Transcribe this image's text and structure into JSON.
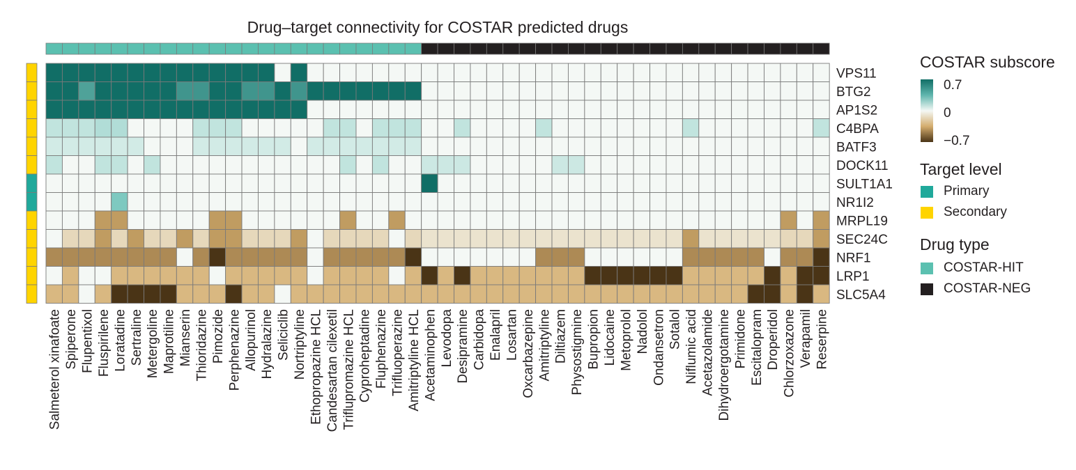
{
  "colors": {
    "hit": "#5bc0b0",
    "neg": "#231f20",
    "primary": "#20a99b",
    "secondary": "#ffd400",
    "grid": "#7a7a7a",
    "text": "#231f20"
  },
  "legend": {
    "score_title": "COSTAR subscore",
    "score_ticks": [
      "0.7",
      "0",
      "−0.7"
    ],
    "target_title": "Target level",
    "target_items": [
      "Primary",
      "Secondary"
    ],
    "drug_title": "Drug type",
    "drug_items": [
      "COSTAR-HIT",
      "COSTAR-NEG"
    ]
  },
  "chart_data": {
    "type": "heatmap",
    "title": "Drug–target connectivity for COSTAR predicted drugs",
    "value_range": [
      -0.7,
      0.7
    ],
    "drugs": [
      "Salmeterol xinafoate",
      "Spiperone",
      "Flupentixol",
      "Fluspirilene",
      "Loratadine",
      "Sertraline",
      "Metergoline",
      "Maprotiline",
      "Mianserin",
      "Thioridazine",
      "Pimozide",
      "Perphenazine",
      "Allopurinol",
      "Hydralazine",
      "Seliciclib",
      "Nortriptyline",
      "Ethopropazine HCL",
      "Candesartan cilexetil",
      "Triflupromazine HCL",
      "Cyproheptadine",
      "Fluphenazine",
      "Trifluoperazine",
      "Amitriptyline HCL",
      "Acetaminophen",
      "Levodopa",
      "Desipramine",
      "Carbidopa",
      "Enalapril",
      "Losartan",
      "Oxcarbazepine",
      "Amitriptyline",
      "Diltiazem",
      "Physostigmine",
      "Bupropion",
      "Lidocaine",
      "Metoprolol",
      "Nadolol",
      "Ondansetron",
      "Sotalol",
      "Niflumic acid",
      "Acetazolamide",
      "Dihydroergotamine",
      "Primidone",
      "Escitalopram",
      "Droperidol",
      "Chlorzoxazone",
      "Verapamil",
      "Reserpine"
    ],
    "drug_types": [
      "HIT",
      "HIT",
      "HIT",
      "HIT",
      "HIT",
      "HIT",
      "HIT",
      "HIT",
      "HIT",
      "HIT",
      "HIT",
      "HIT",
      "HIT",
      "HIT",
      "HIT",
      "HIT",
      "HIT",
      "HIT",
      "HIT",
      "HIT",
      "HIT",
      "HIT",
      "HIT",
      "NEG",
      "NEG",
      "NEG",
      "NEG",
      "NEG",
      "NEG",
      "NEG",
      "NEG",
      "NEG",
      "NEG",
      "NEG",
      "NEG",
      "NEG",
      "NEG",
      "NEG",
      "NEG",
      "NEG",
      "NEG",
      "NEG",
      "NEG",
      "NEG",
      "NEG",
      "NEG",
      "NEG",
      "NEG"
    ],
    "targets": [
      "VPS11",
      "BTG2",
      "AP1S2",
      "C4BPA",
      "BATF3",
      "DOCK11",
      "SULT1A1",
      "NR1I2",
      "MRPL19",
      "SEC24C",
      "NRF1",
      "LRP1",
      "SLC5A4"
    ],
    "target_levels": [
      "Secondary",
      "Secondary",
      "Secondary",
      "Secondary",
      "Secondary",
      "Secondary",
      "Primary",
      "Primary",
      "Secondary",
      "Secondary",
      "Secondary",
      "Secondary",
      "Secondary"
    ],
    "values": [
      [
        0.7,
        0.7,
        0.7,
        0.7,
        0.7,
        0.7,
        0.7,
        0.7,
        0.7,
        0.7,
        0.7,
        0.7,
        0.7,
        0.7,
        0,
        0.7,
        0,
        0,
        0,
        0,
        0,
        0,
        0,
        0,
        0,
        0,
        0,
        0,
        0,
        0,
        0,
        0,
        0,
        0,
        0,
        0,
        0,
        0,
        0,
        0,
        0,
        0,
        0,
        0,
        0,
        0,
        0,
        0
      ],
      [
        0.7,
        0.7,
        0.5,
        0.7,
        0.7,
        0.7,
        0.7,
        0.7,
        0.55,
        0.55,
        0.7,
        0.7,
        0.55,
        0.55,
        0.7,
        0.55,
        0.7,
        0.7,
        0.7,
        0.7,
        0.7,
        0.7,
        0.7,
        0,
        0,
        0,
        0,
        0,
        0,
        0,
        0,
        0,
        0,
        0,
        0,
        0,
        0,
        0,
        0,
        0,
        0,
        0,
        0,
        0,
        0,
        0,
        0,
        0
      ],
      [
        0.7,
        0.7,
        0.7,
        0.7,
        0.7,
        0.7,
        0.7,
        0.7,
        0.7,
        0.7,
        0.7,
        0.7,
        0.7,
        0.7,
        0.7,
        0.7,
        0,
        0,
        0,
        0,
        0,
        0,
        0,
        0,
        0,
        0,
        0,
        0,
        0,
        0,
        0,
        0,
        0,
        0,
        0,
        0,
        0,
        0,
        0,
        0,
        0,
        0,
        0,
        0,
        0,
        0,
        0,
        0
      ],
      [
        0.15,
        0.15,
        0.15,
        0.2,
        0.2,
        0,
        0,
        0,
        0,
        0.15,
        0.15,
        0.15,
        0,
        0,
        0,
        0,
        0,
        0.15,
        0.15,
        0,
        0.15,
        0.15,
        0.15,
        0,
        0,
        0.15,
        0,
        0,
        0,
        0,
        0.15,
        0,
        0,
        0,
        0,
        0,
        0,
        0,
        0,
        0.15,
        0,
        0,
        0,
        0,
        0,
        0,
        0,
        0.15
      ],
      [
        0.1,
        0.1,
        0.1,
        0.1,
        0.1,
        0.1,
        0,
        0,
        0,
        0.1,
        0.1,
        0.1,
        0.1,
        0.1,
        0.1,
        0,
        0.1,
        0.1,
        0.1,
        0.1,
        0.1,
        0.1,
        0.1,
        0,
        0,
        0,
        0,
        0,
        0,
        0,
        0,
        0,
        0,
        0,
        0,
        0,
        0,
        0,
        0,
        0,
        0,
        0,
        0,
        0,
        0,
        0,
        0,
        0
      ],
      [
        0.15,
        0,
        0,
        0.15,
        0.15,
        0,
        0.15,
        0,
        0,
        0,
        0,
        0,
        0,
        0,
        0,
        0,
        0,
        0,
        0.15,
        0,
        0.15,
        0,
        0,
        0.12,
        0.12,
        0.12,
        0,
        0,
        0,
        0,
        0,
        0.12,
        0.12,
        0,
        0,
        0,
        0,
        0,
        0,
        0,
        0,
        0,
        0,
        0,
        0,
        0,
        0,
        0
      ],
      [
        0,
        0,
        0,
        0,
        0,
        0,
        0,
        0,
        0,
        0,
        0,
        0,
        0,
        0,
        0,
        0,
        0,
        0,
        0,
        0,
        0,
        0,
        0,
        0.7,
        0,
        0,
        0,
        0,
        0,
        0,
        0,
        0,
        0,
        0,
        0,
        0,
        0,
        0,
        0,
        0,
        0,
        0,
        0,
        0,
        0,
        0,
        0,
        0
      ],
      [
        0,
        0,
        0,
        0,
        0.35,
        0,
        0,
        0,
        0,
        0,
        0,
        0,
        0,
        0,
        0,
        0,
        0,
        0,
        0,
        0,
        0,
        0,
        0,
        0,
        0,
        0,
        0,
        0,
        0,
        0,
        0,
        0,
        0,
        0,
        0,
        0,
        0,
        0,
        0,
        0,
        0,
        0,
        0,
        0,
        0,
        0,
        0,
        0
      ],
      [
        0,
        0,
        0,
        -0.4,
        -0.4,
        0,
        0,
        0,
        0,
        0,
        -0.4,
        -0.4,
        0,
        0,
        0,
        0,
        0,
        0,
        -0.4,
        0,
        0,
        -0.4,
        0,
        0,
        0,
        0,
        0,
        0,
        0,
        0,
        0,
        0,
        0,
        0,
        0,
        0,
        0,
        0,
        0,
        0,
        0,
        0,
        0,
        0,
        0,
        -0.4,
        0,
        -0.4
      ],
      [
        0,
        -0.15,
        -0.15,
        -0.4,
        -0.15,
        -0.4,
        -0.15,
        -0.15,
        -0.4,
        -0.15,
        -0.4,
        -0.4,
        -0.15,
        -0.15,
        -0.15,
        -0.4,
        0,
        -0.15,
        -0.15,
        -0.15,
        -0.15,
        0,
        -0.15,
        -0.1,
        -0.1,
        -0.1,
        -0.1,
        -0.1,
        -0.1,
        -0.1,
        -0.1,
        -0.1,
        -0.1,
        -0.1,
        -0.1,
        -0.1,
        -0.1,
        -0.1,
        -0.1,
        -0.4,
        -0.1,
        -0.1,
        -0.1,
        -0.1,
        -0.1,
        -0.15,
        -0.15,
        -0.4
      ],
      [
        -0.45,
        -0.45,
        -0.45,
        -0.45,
        -0.45,
        -0.45,
        -0.45,
        -0.45,
        0,
        -0.45,
        -0.7,
        -0.45,
        -0.45,
        -0.45,
        -0.45,
        -0.45,
        0,
        -0.45,
        -0.45,
        -0.45,
        -0.45,
        -0.45,
        -0.7,
        0,
        0,
        0,
        0,
        0,
        0,
        0,
        -0.45,
        -0.45,
        -0.45,
        0,
        0,
        0,
        0,
        0,
        0,
        -0.45,
        -0.45,
        -0.45,
        -0.45,
        -0.45,
        0,
        -0.45,
        -0.45,
        -0.7
      ],
      [
        0,
        -0.3,
        0,
        0,
        -0.3,
        -0.3,
        -0.3,
        -0.3,
        -0.3,
        -0.3,
        0,
        -0.3,
        -0.3,
        -0.3,
        -0.3,
        -0.3,
        0,
        -0.3,
        -0.3,
        -0.3,
        -0.3,
        0,
        -0.3,
        -0.7,
        -0.3,
        -0.7,
        -0.3,
        -0.3,
        -0.3,
        -0.3,
        -0.3,
        -0.3,
        -0.3,
        -0.7,
        -0.7,
        -0.7,
        -0.7,
        -0.7,
        -0.7,
        -0.3,
        -0.3,
        -0.3,
        -0.3,
        -0.3,
        -0.7,
        -0.3,
        -0.7,
        -0.7
      ],
      [
        -0.3,
        -0.3,
        0,
        -0.3,
        -0.7,
        -0.7,
        -0.7,
        -0.7,
        -0.3,
        -0.3,
        -0.3,
        -0.7,
        -0.3,
        -0.3,
        0,
        -0.3,
        -0.3,
        -0.3,
        -0.3,
        -0.3,
        -0.3,
        -0.3,
        -0.3,
        -0.3,
        -0.3,
        -0.3,
        -0.3,
        -0.3,
        -0.3,
        -0.3,
        -0.3,
        -0.3,
        -0.3,
        -0.3,
        -0.3,
        -0.3,
        -0.3,
        -0.3,
        -0.3,
        -0.3,
        -0.3,
        -0.3,
        -0.3,
        -0.7,
        -0.7,
        -0.3,
        -0.7,
        -0.3
      ]
    ]
  }
}
